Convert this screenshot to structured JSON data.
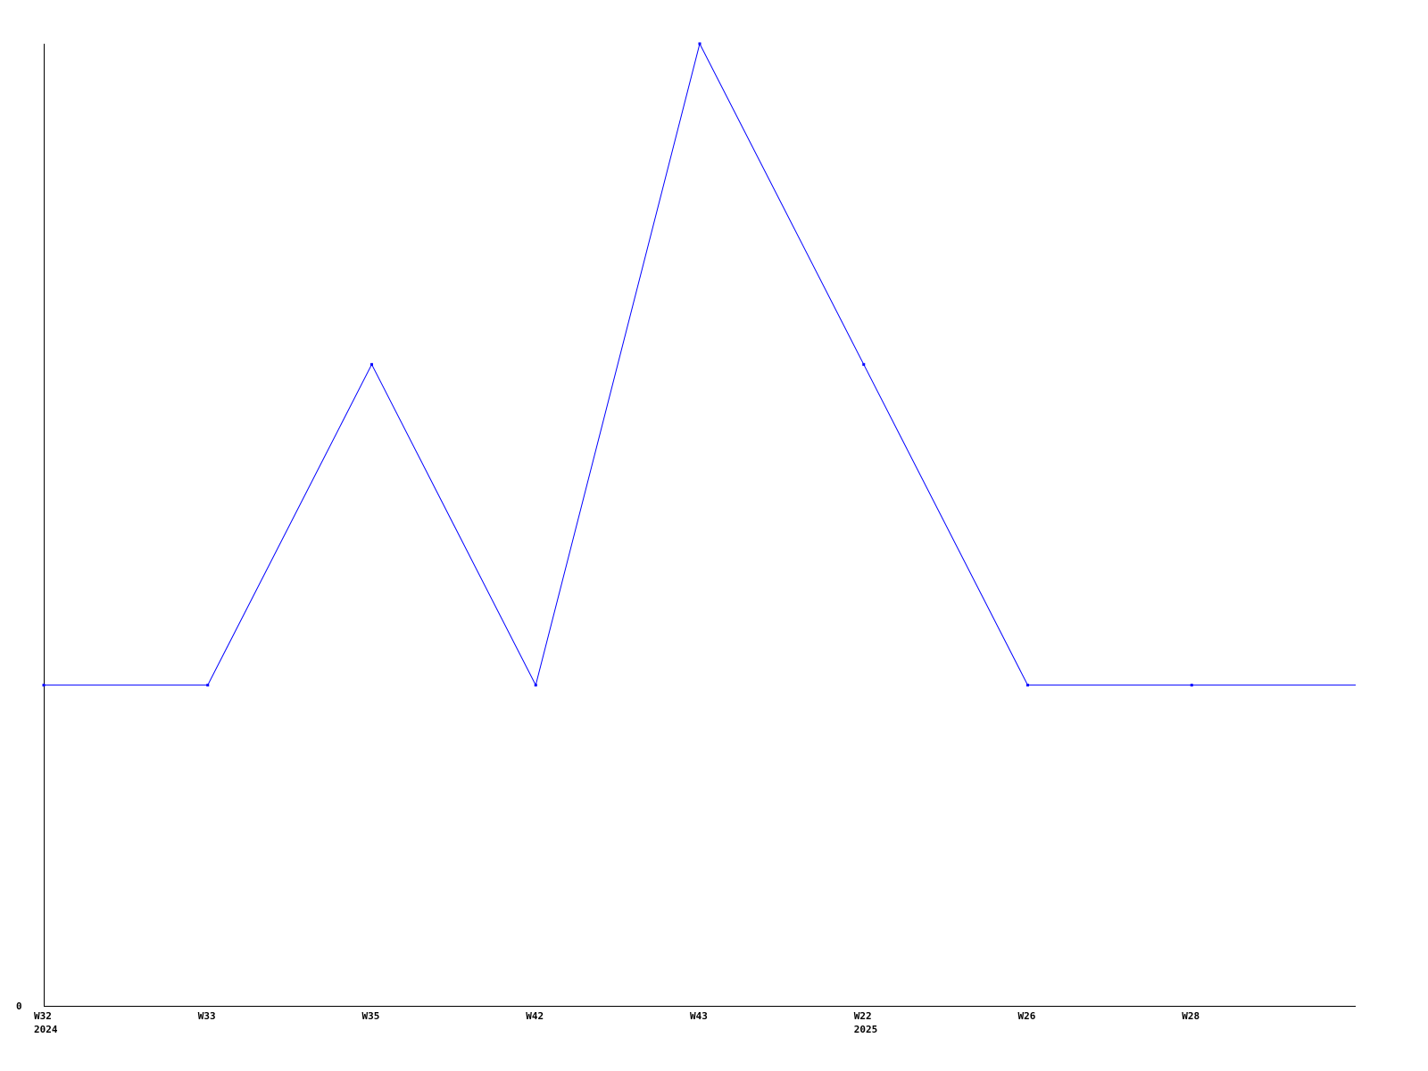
{
  "chart_data": {
    "type": "line",
    "title": "",
    "xlabel": "",
    "ylabel": "",
    "categories": [
      "W32",
      "W33",
      "W35",
      "W42",
      "W43",
      "W22",
      "W26",
      "W28"
    ],
    "category_sublabels": [
      "2024",
      "",
      "",
      "",
      "",
      "2025",
      "",
      ""
    ],
    "series": [
      {
        "values": [
          1,
          1,
          2,
          1,
          3,
          2,
          1,
          1
        ],
        "color": "#0000ff"
      }
    ],
    "ylim": [
      0,
      3
    ],
    "yticks": [
      "0"
    ],
    "grid": false,
    "legend": "none"
  }
}
